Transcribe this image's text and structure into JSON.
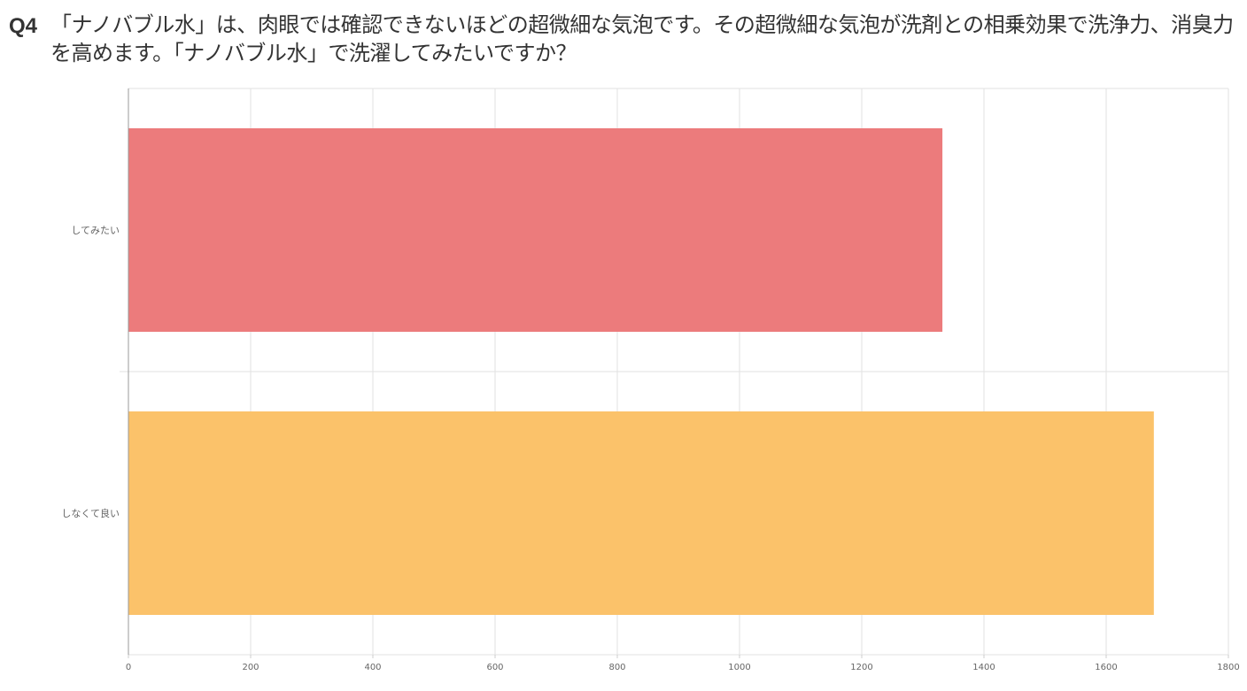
{
  "question": {
    "number": "Q4",
    "text": "「ナノバブル水」は、肉眼では確認できないほどの超微細な気泡です。その超微細な気泡が洗剤との相乗効果で洗浄力、消臭力を高めます。「ナノバブル水」で洗濯してみたいですか？"
  },
  "chart_data": {
    "type": "bar",
    "orientation": "horizontal",
    "categories": [
      "してみたい",
      "しなくて良い"
    ],
    "values": [
      1332,
      1678
    ],
    "colors": [
      "#ec7b7c",
      "#fbc26a"
    ],
    "xlim": [
      0,
      1800
    ],
    "xticks": [
      0,
      200,
      400,
      600,
      800,
      1000,
      1200,
      1400,
      1600,
      1800
    ],
    "grid": true,
    "title": "",
    "xlabel": "",
    "ylabel": ""
  }
}
